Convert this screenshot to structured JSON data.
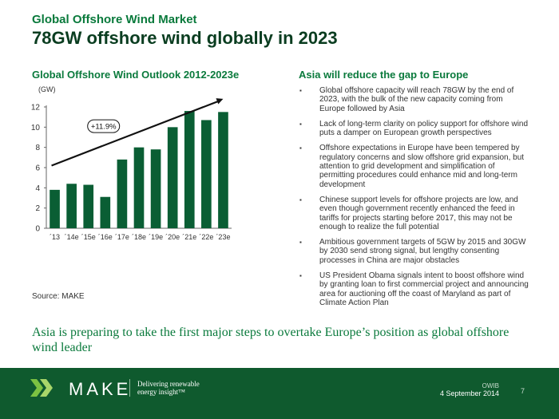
{
  "header": {
    "kicker": "Global Offshore Wind Market",
    "headline": "78GW offshore wind globally in 2023"
  },
  "chart_data": {
    "type": "bar",
    "title": "Global Offshore Wind Outlook 2012-2023e",
    "unit_label": "(GW)",
    "categories": [
      "´13",
      "´14e",
      "´15e",
      "´16e",
      "´17e",
      "´18e",
      "´19e",
      "´20e",
      "´21e",
      "´22e",
      "´23e"
    ],
    "values": [
      3.8,
      4.4,
      4.3,
      3.1,
      6.8,
      8.0,
      7.8,
      10.0,
      11.6,
      10.7,
      11.5
    ],
    "ylim": [
      0,
      12
    ],
    "yticks": [
      0,
      2,
      4,
      6,
      8,
      10,
      12
    ],
    "grid": false,
    "bar_color": "#0a5e34",
    "annotation": {
      "label": "+11.9%",
      "kind": "growth-arrow"
    }
  },
  "source": "Source: MAKE",
  "right": {
    "title": "Asia will reduce the gap to Europe",
    "bullets": [
      "Global offshore capacity will reach 78GW by the end of 2023, with the bulk of the new capacity coming from Europe followed by Asia",
      "Lack of long-term clarity on policy support for offshore wind puts a damper on European growth perspectives",
      "Offshore expectations in Europe have been tempered by regulatory concerns and slow offshore grid expansion, but attention to grid development and simplification of permitting procedures could enhance mid and long-term development",
      "Chinese support levels for offshore projects are low, and even though government recently enhanced the feed in tariffs for projects starting before 2017, this may not be enough to realize the full potential",
      "Ambitious government targets of 5GW by 2015 and 30GW by 2030 send strong signal, but lengthy consenting processes in China are major obstacles",
      "US President Obama signals intent to boost offshore wind by granting loan to first commercial project and announcing area for auctioning off the coast of Maryland as part of Climate Action Plan"
    ]
  },
  "takeaway": "Asia is preparing to take the first major steps to overtake Europe’s position as global offshore wind leader",
  "footer": {
    "brand": "MAKE",
    "tagline_line1": "Delivering renewable",
    "tagline_line2": "energy insight™",
    "event": "OWIB",
    "date": "4 September 2014",
    "page": "7"
  },
  "colors": {
    "accent_green": "#0a7a3c",
    "dark_green": "#0a3d20",
    "footer_bg": "#0f5a2e"
  },
  "icons": {
    "logo": "make-logo-icon",
    "bullet": "square-bullet-icon"
  }
}
